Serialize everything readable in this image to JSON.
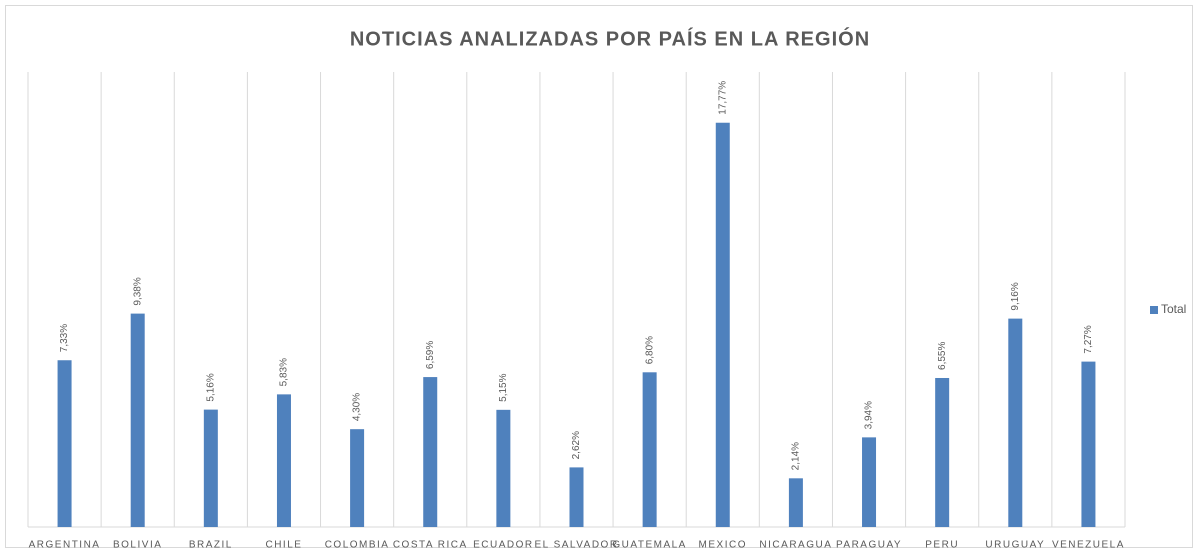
{
  "chart_data": {
    "type": "bar",
    "title": "NOTICIAS ANALIZADAS POR PAÍS EN LA REGIÓN",
    "categories": [
      "ARGENTINA",
      "BOLIVIA",
      "BRAZIL",
      "CHILE",
      "COLOMBIA",
      "COSTA RICA",
      "ECUADOR",
      "EL SALVADOR",
      "GUATEMALA",
      "MEXICO",
      "NICARAGUA",
      "PARAGUAY",
      "PERU",
      "URUGUAY",
      "VENEZUELA"
    ],
    "series": [
      {
        "name": "Total",
        "color": "#4f81bd",
        "values": [
          7.33,
          9.38,
          5.16,
          5.83,
          4.3,
          6.59,
          5.15,
          2.62,
          6.8,
          17.77,
          2.14,
          3.94,
          6.55,
          9.16,
          7.27
        ],
        "value_labels": [
          "7,33%",
          "9,38%",
          "5,16%",
          "5,83%",
          "4,30%",
          "6,59%",
          "5,15%",
          "2,62%",
          "6,80%",
          "17,77%",
          "2,14%",
          "3,94%",
          "6,55%",
          "9,16%",
          "7,27%"
        ]
      }
    ],
    "ylim": [
      0,
      20
    ],
    "legend": "right"
  }
}
